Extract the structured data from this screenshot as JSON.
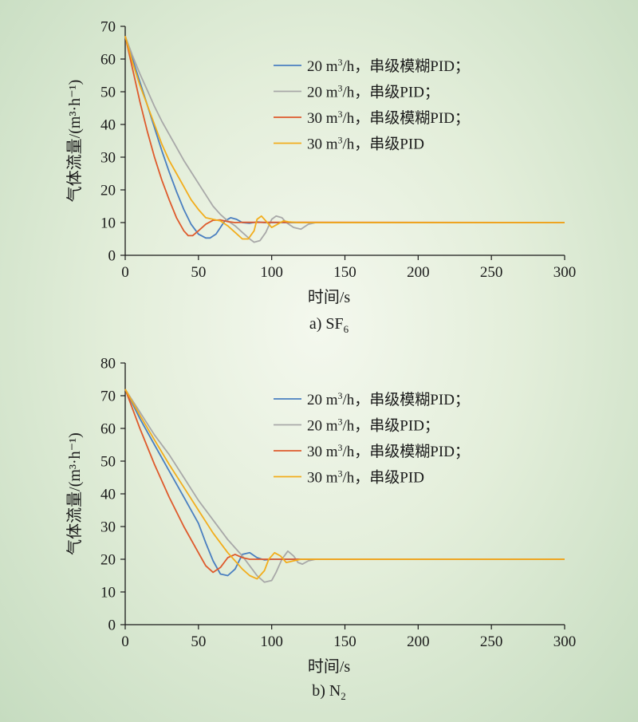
{
  "colors": {
    "fuzzy_20": "#4a7fc0",
    "pid_20": "#a8a8a8",
    "fuzzy_30": "#de5a2c",
    "pid_30": "#f2ad1c",
    "axis": "#1a1a1a"
  },
  "legend_labels": [
    {
      "pre": "20 m",
      "sup": "3",
      "post": "/h，串级模糊PID；"
    },
    {
      "pre": "20 m",
      "sup": "3",
      "post": "/h，串级PID；"
    },
    {
      "pre": "30 m",
      "sup": "3",
      "post": "/h，串级模糊PID；"
    },
    {
      "pre": "30 m",
      "sup": "3",
      "post": "/h，串级PID"
    }
  ],
  "chart_data": [
    {
      "type": "line",
      "caption_main": "a) SF",
      "caption_sub": "6",
      "xlabel": "时间/s",
      "ylabel": "气体流量/(m³·h⁻¹)",
      "xlim": [
        0,
        300
      ],
      "ylim": [
        0,
        70
      ],
      "xticks": [
        0,
        50,
        100,
        150,
        200,
        250,
        300
      ],
      "yticks": [
        0,
        10,
        20,
        30,
        40,
        50,
        60,
        70
      ],
      "legend_position": "top-right",
      "series": [
        {
          "name": "20 m3/h，串级模糊PID",
          "color_key": "fuzzy_20",
          "points": [
            [
              0,
              67
            ],
            [
              5,
              60
            ],
            [
              10,
              53
            ],
            [
              15,
              46
            ],
            [
              20,
              39
            ],
            [
              25,
              32
            ],
            [
              30,
              25.5
            ],
            [
              35,
              19.5
            ],
            [
              40,
              14
            ],
            [
              45,
              9.5
            ],
            [
              50,
              6.5
            ],
            [
              55,
              5.3
            ],
            [
              58,
              5.3
            ],
            [
              62,
              6.5
            ],
            [
              65,
              8.5
            ],
            [
              68,
              10.5
            ],
            [
              72,
              11.5
            ],
            [
              76,
              11
            ],
            [
              80,
              10
            ],
            [
              85,
              9.8
            ],
            [
              90,
              10.2
            ],
            [
              95,
              10
            ],
            [
              300,
              10
            ]
          ]
        },
        {
          "name": "20 m3/h，串级PID",
          "color_key": "pid_20",
          "points": [
            [
              0,
              67
            ],
            [
              5,
              61
            ],
            [
              10,
              55.5
            ],
            [
              15,
              50.5
            ],
            [
              20,
              45.5
            ],
            [
              25,
              41
            ],
            [
              30,
              37
            ],
            [
              35,
              33
            ],
            [
              40,
              29
            ],
            [
              45,
              25.5
            ],
            [
              50,
              22
            ],
            [
              55,
              18.5
            ],
            [
              60,
              15
            ],
            [
              65,
              12.5
            ],
            [
              70,
              10.5
            ],
            [
              75,
              9
            ],
            [
              80,
              7
            ],
            [
              85,
              5
            ],
            [
              88,
              4
            ],
            [
              92,
              4.5
            ],
            [
              96,
              7
            ],
            [
              100,
              11
            ],
            [
              103,
              12
            ],
            [
              107,
              11.5
            ],
            [
              110,
              10
            ],
            [
              115,
              8.5
            ],
            [
              120,
              8
            ],
            [
              125,
              9.5
            ],
            [
              130,
              10
            ],
            [
              300,
              10
            ]
          ]
        },
        {
          "name": "30 m3/h，串级模糊PID",
          "color_key": "fuzzy_30",
          "points": [
            [
              0,
              67
            ],
            [
              5,
              57
            ],
            [
              10,
              47
            ],
            [
              15,
              38
            ],
            [
              20,
              30
            ],
            [
              25,
              23
            ],
            [
              30,
              17
            ],
            [
              35,
              11.5
            ],
            [
              40,
              7.5
            ],
            [
              43,
              6
            ],
            [
              46,
              6
            ],
            [
              50,
              7.5
            ],
            [
              55,
              9.5
            ],
            [
              60,
              10.7
            ],
            [
              65,
              10.8
            ],
            [
              70,
              10.3
            ],
            [
              75,
              10
            ],
            [
              80,
              10.1
            ],
            [
              300,
              10
            ]
          ]
        },
        {
          "name": "30 m3/h，串级PID",
          "color_key": "pid_30",
          "points": [
            [
              0,
              67
            ],
            [
              5,
              59
            ],
            [
              10,
              52
            ],
            [
              15,
              46
            ],
            [
              20,
              40
            ],
            [
              25,
              34
            ],
            [
              30,
              29
            ],
            [
              35,
              25
            ],
            [
              40,
              21
            ],
            [
              45,
              17
            ],
            [
              50,
              14
            ],
            [
              55,
              11.5
            ],
            [
              60,
              11
            ],
            [
              65,
              10.5
            ],
            [
              70,
              9
            ],
            [
              75,
              7
            ],
            [
              80,
              5
            ],
            [
              84,
              5
            ],
            [
              88,
              7.5
            ],
            [
              90,
              11
            ],
            [
              93,
              12
            ],
            [
              97,
              10
            ],
            [
              100,
              8.5
            ],
            [
              104,
              9.5
            ],
            [
              108,
              10.5
            ],
            [
              112,
              10.2
            ],
            [
              118,
              10
            ],
            [
              300,
              10
            ]
          ]
        }
      ]
    },
    {
      "type": "line",
      "caption_main": "b) N",
      "caption_sub": "2",
      "xlabel": "时间/s",
      "ylabel": "气体流量/(m³·h⁻¹)",
      "xlim": [
        0,
        300
      ],
      "ylim": [
        0,
        80
      ],
      "xticks": [
        0,
        50,
        100,
        150,
        200,
        250,
        300
      ],
      "yticks": [
        0,
        10,
        20,
        30,
        40,
        50,
        60,
        70,
        80
      ],
      "legend_position": "top-right",
      "series": [
        {
          "name": "20 m3/h，串级模糊PID",
          "color_key": "fuzzy_20",
          "points": [
            [
              0,
              72
            ],
            [
              10,
              63
            ],
            [
              20,
              55
            ],
            [
              30,
              47
            ],
            [
              40,
              39
            ],
            [
              50,
              31
            ],
            [
              55,
              25
            ],
            [
              60,
              19.5
            ],
            [
              65,
              15.5
            ],
            [
              70,
              15
            ],
            [
              75,
              17
            ],
            [
              80,
              21.5
            ],
            [
              85,
              22
            ],
            [
              90,
              20.5
            ],
            [
              95,
              19.8
            ],
            [
              100,
              20
            ],
            [
              300,
              20
            ]
          ]
        },
        {
          "name": "20 m3/h，串级PID",
          "color_key": "pid_20",
          "points": [
            [
              0,
              72
            ],
            [
              10,
              65
            ],
            [
              20,
              58
            ],
            [
              30,
              52
            ],
            [
              40,
              45
            ],
            [
              50,
              38
            ],
            [
              60,
              32
            ],
            [
              70,
              26
            ],
            [
              80,
              21
            ],
            [
              85,
              18
            ],
            [
              90,
              15
            ],
            [
              95,
              13
            ],
            [
              100,
              13.5
            ],
            [
              103,
              16
            ],
            [
              107,
              20
            ],
            [
              111,
              22.5
            ],
            [
              115,
              21
            ],
            [
              118,
              19
            ],
            [
              121,
              18.5
            ],
            [
              125,
              19.5
            ],
            [
              130,
              20
            ],
            [
              300,
              20
            ]
          ]
        },
        {
          "name": "30 m3/h，串级模糊PID",
          "color_key": "fuzzy_30",
          "points": [
            [
              0,
              72
            ],
            [
              10,
              60
            ],
            [
              20,
              49
            ],
            [
              30,
              39
            ],
            [
              40,
              30
            ],
            [
              50,
              22
            ],
            [
              55,
              18
            ],
            [
              60,
              16
            ],
            [
              65,
              17.5
            ],
            [
              70,
              20.5
            ],
            [
              75,
              21.5
            ],
            [
              80,
              20.5
            ],
            [
              85,
              20
            ],
            [
              300,
              20
            ]
          ]
        },
        {
          "name": "30 m3/h，串级PID",
          "color_key": "pid_30",
          "points": [
            [
              0,
              72
            ],
            [
              10,
              64
            ],
            [
              20,
              56.5
            ],
            [
              30,
              49
            ],
            [
              40,
              42
            ],
            [
              50,
              35
            ],
            [
              60,
              28
            ],
            [
              70,
              22
            ],
            [
              75,
              19.5
            ],
            [
              80,
              17
            ],
            [
              85,
              15
            ],
            [
              90,
              14
            ],
            [
              95,
              16.5
            ],
            [
              98,
              20
            ],
            [
              102,
              22
            ],
            [
              106,
              21
            ],
            [
              110,
              19
            ],
            [
              115,
              19.5
            ],
            [
              120,
              20
            ],
            [
              300,
              20
            ]
          ]
        }
      ]
    }
  ]
}
